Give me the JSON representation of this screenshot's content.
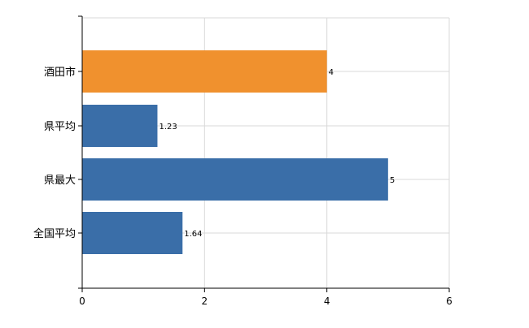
{
  "chart_data": {
    "type": "bar",
    "orientation": "horizontal",
    "categories": [
      "酒田市",
      "県平均",
      "県最大",
      "全国平均"
    ],
    "values": [
      4,
      1.23,
      5,
      1.64
    ],
    "value_labels": [
      "4",
      "1.23",
      "5",
      "1.64"
    ],
    "bar_colors": [
      "#f0912e",
      "#3a6ea8",
      "#3a6ea8",
      "#3a6ea8"
    ],
    "xlim": [
      0,
      6
    ],
    "x_ticks": [
      0,
      2,
      4,
      6
    ],
    "x_tick_labels": [
      "0",
      "2",
      "4",
      "6"
    ],
    "grid": true,
    "legend": false,
    "title": "",
    "xlabel": "",
    "ylabel": ""
  },
  "colors": {
    "highlight": "#f0912e",
    "primary": "#3a6ea8",
    "grid": "#d9d9d9",
    "axis": "#000000"
  }
}
